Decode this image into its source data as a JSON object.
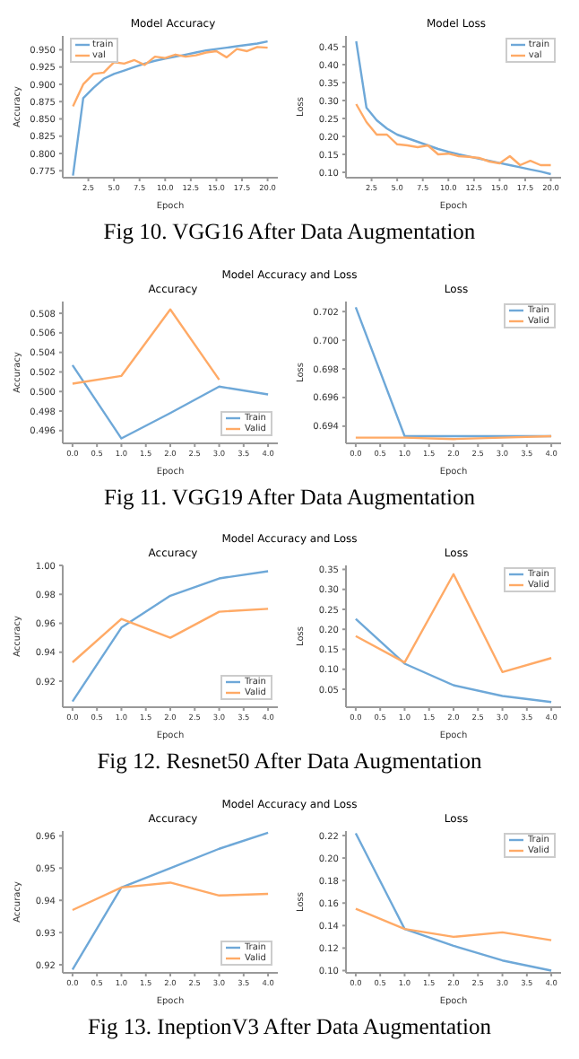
{
  "chart_data": [
    {
      "type": "line",
      "title": "Model Accuracy",
      "xlabel": "Epoch",
      "ylabel": "Accuracy",
      "legend": "top left",
      "x": [
        1,
        2,
        3,
        4,
        5,
        6,
        7,
        8,
        9,
        10,
        11,
        12,
        13,
        14,
        15,
        16,
        17,
        18,
        19,
        20
      ],
      "xlim": [
        0,
        21
      ],
      "xticks": [
        2.5,
        {
          "value": 5,
          "label": "5.0"
        },
        7.5,
        {
          "value": 10,
          "label": "10.0"
        },
        12.5,
        {
          "value": 15,
          "label": "15.0"
        },
        17.5,
        {
          "value": 20,
          "label": "20.0"
        }
      ],
      "ylim": [
        0.765,
        0.97
      ],
      "yticks": [
        0.775,
        {
          "value": 0.8,
          "label": "0.800"
        },
        0.825,
        {
          "value": 0.85,
          "label": "0.850"
        },
        0.875,
        {
          "value": 0.9,
          "label": "0.900"
        },
        0.925,
        {
          "value": 0.95,
          "label": "0.950"
        }
      ],
      "series": [
        {
          "name": "train",
          "color": "#6ea8d8",
          "values": [
            0.768,
            0.88,
            0.895,
            0.908,
            0.915,
            0.92,
            0.925,
            0.93,
            0.934,
            0.937,
            0.94,
            0.943,
            0.946,
            0.949,
            0.951,
            0.953,
            0.955,
            0.957,
            0.959,
            0.962
          ]
        },
        {
          "name": "val",
          "color": "#ffaa66",
          "values": [
            0.868,
            0.9,
            0.915,
            0.917,
            0.932,
            0.93,
            0.935,
            0.928,
            0.94,
            0.938,
            0.943,
            0.94,
            0.942,
            0.946,
            0.948,
            0.939,
            0.951,
            0.948,
            0.954,
            0.953
          ]
        }
      ]
    },
    {
      "type": "line",
      "title": "Model Loss",
      "xlabel": "Epoch",
      "ylabel": "Loss",
      "legend": "top right",
      "annotations": [
        "Fig 10. VGG16 After Data Augmentation"
      ],
      "x": [
        1,
        2,
        3,
        4,
        5,
        6,
        7,
        8,
        9,
        10,
        11,
        12,
        13,
        14,
        15,
        16,
        17,
        18,
        19,
        20
      ],
      "xlim": [
        0,
        21
      ],
      "xticks": [
        2.5,
        {
          "value": 5,
          "label": "5.0"
        },
        7.5,
        {
          "value": 10,
          "label": "10.0"
        },
        12.5,
        {
          "value": 15,
          "label": "15.0"
        },
        17.5,
        {
          "value": 20,
          "label": "20.0"
        }
      ],
      "ylim": [
        0.085,
        0.48
      ],
      "yticks": [
        {
          "value": 0.1,
          "label": "0.10"
        },
        0.15,
        {
          "value": 0.2,
          "label": "0.20"
        },
        0.25,
        {
          "value": 0.3,
          "label": "0.30"
        },
        0.35,
        {
          "value": 0.4,
          "label": "0.40"
        },
        0.45
      ],
      "series": [
        {
          "name": "train",
          "color": "#6ea8d8",
          "values": [
            0.465,
            0.28,
            0.245,
            0.222,
            0.205,
            0.195,
            0.185,
            0.175,
            0.165,
            0.157,
            0.15,
            0.144,
            0.138,
            0.132,
            0.126,
            0.12,
            0.114,
            0.108,
            0.102,
            0.095
          ]
        },
        {
          "name": "val",
          "color": "#ffaa66",
          "values": [
            0.29,
            0.24,
            0.205,
            0.205,
            0.178,
            0.175,
            0.17,
            0.175,
            0.15,
            0.152,
            0.145,
            0.143,
            0.14,
            0.13,
            0.125,
            0.145,
            0.12,
            0.132,
            0.12,
            0.12
          ]
        }
      ]
    },
    {
      "type": "line",
      "title": "Accuracy",
      "xlabel": "Epoch",
      "ylabel": "Accuracy",
      "legend": "bottom right",
      "annotations": [
        "Model Accuracy and Loss"
      ],
      "x": [
        0,
        1,
        2,
        3,
        4
      ],
      "xlim": [
        -0.2,
        4.2
      ],
      "xticks": [
        {
          "value": 0,
          "label": "0.0"
        },
        0.5,
        {
          "value": 1,
          "label": "1.0"
        },
        1.5,
        {
          "value": 2,
          "label": "2.0"
        },
        2.5,
        {
          "value": 3,
          "label": "3.0"
        },
        3.5,
        {
          "value": 4,
          "label": "4.0"
        }
      ],
      "ylim": [
        0.4947,
        0.5092
      ],
      "yticks": [
        0.496,
        0.498,
        {
          "value": 0.5,
          "label": "0.500"
        },
        0.502,
        0.504,
        0.506,
        0.508
      ],
      "series": [
        {
          "name": "Train",
          "color": "#6ea8d8",
          "values": [
            0.5027,
            0.4952,
            0.4978,
            0.5005,
            0.4997
          ]
        },
        {
          "name": "Valid",
          "color": "#ffaa66",
          "values": [
            0.5008,
            0.5016,
            0.5084,
            0.5012,
            null
          ]
        }
      ]
    },
    {
      "type": "line",
      "title": "Loss",
      "xlabel": "Epoch",
      "ylabel": "Loss",
      "legend": "top right",
      "annotations": [
        "Fig 11. VGG19 After Data Augmentation"
      ],
      "x": [
        0,
        1,
        2,
        3,
        4
      ],
      "xlim": [
        -0.2,
        4.2
      ],
      "xticks": [
        {
          "value": 0,
          "label": "0.0"
        },
        0.5,
        {
          "value": 1,
          "label": "1.0"
        },
        1.5,
        {
          "value": 2,
          "label": "2.0"
        },
        2.5,
        {
          "value": 3,
          "label": "3.0"
        },
        3.5,
        {
          "value": 4,
          "label": "4.0"
        }
      ],
      "ylim": [
        0.6928,
        0.7027
      ],
      "yticks": [
        0.694,
        0.696,
        0.698,
        {
          "value": 0.7,
          "label": "0.700"
        },
        0.702
      ],
      "series": [
        {
          "name": "Train",
          "color": "#6ea8d8",
          "values": [
            0.7023,
            0.6933,
            0.6933,
            0.6933,
            0.6933
          ]
        },
        {
          "name": "Valid",
          "color": "#ffaa66",
          "values": [
            0.6932,
            0.6932,
            0.6931,
            0.6932,
            0.6933
          ]
        }
      ]
    },
    {
      "type": "line",
      "title": "Accuracy",
      "xlabel": "Epoch",
      "ylabel": "Accuracy",
      "legend": "bottom right",
      "annotations": [
        "Model Accuracy and Loss"
      ],
      "x": [
        0,
        1,
        2,
        3,
        4
      ],
      "xlim": [
        -0.2,
        4.2
      ],
      "xticks": [
        {
          "value": 0,
          "label": "0.0"
        },
        0.5,
        {
          "value": 1,
          "label": "1.0"
        },
        1.5,
        {
          "value": 2,
          "label": "2.0"
        },
        2.5,
        {
          "value": 3,
          "label": "3.0"
        },
        3.5,
        {
          "value": 4,
          "label": "4.0"
        }
      ],
      "ylim": [
        0.902,
        1.0
      ],
      "yticks": [
        0.92,
        0.94,
        0.96,
        0.98,
        {
          "value": 1,
          "label": "1.00"
        }
      ],
      "series": [
        {
          "name": "Train",
          "color": "#6ea8d8",
          "values": [
            0.906,
            0.957,
            0.979,
            0.991,
            0.996
          ]
        },
        {
          "name": "Valid",
          "color": "#ffaa66",
          "values": [
            0.933,
            0.963,
            0.95,
            0.968,
            0.97
          ]
        }
      ]
    },
    {
      "type": "line",
      "title": "Loss",
      "xlabel": "Epoch",
      "ylabel": "Loss",
      "legend": "top right",
      "annotations": [
        "Fig 12. Resnet50 After Data Augmentation"
      ],
      "x": [
        0,
        1,
        2,
        3,
        4
      ],
      "xlim": [
        -0.2,
        4.2
      ],
      "xticks": [
        {
          "value": 0,
          "label": "0.0"
        },
        0.5,
        {
          "value": 1,
          "label": "1.0"
        },
        1.5,
        {
          "value": 2,
          "label": "2.0"
        },
        2.5,
        {
          "value": 3,
          "label": "3.0"
        },
        3.5,
        {
          "value": 4,
          "label": "4.0"
        }
      ],
      "ylim": [
        0.005,
        0.36
      ],
      "yticks": [
        0.05,
        {
          "value": 0.1,
          "label": "0.10"
        },
        0.15,
        {
          "value": 0.2,
          "label": "0.20"
        },
        0.25,
        {
          "value": 0.3,
          "label": "0.30"
        },
        0.35
      ],
      "series": [
        {
          "name": "Train",
          "color": "#6ea8d8",
          "values": [
            0.226,
            0.114,
            0.06,
            0.033,
            0.018
          ]
        },
        {
          "name": "Valid",
          "color": "#ffaa66",
          "values": [
            0.183,
            0.117,
            0.338,
            0.093,
            0.128
          ]
        }
      ]
    },
    {
      "type": "line",
      "title": "Accuracy",
      "xlabel": "Epoch",
      "ylabel": "Accuracy",
      "legend": "bottom right",
      "annotations": [
        "Model Accuracy and Loss"
      ],
      "x": [
        0,
        1,
        2,
        3,
        4
      ],
      "xlim": [
        -0.2,
        4.2
      ],
      "xticks": [
        {
          "value": 0,
          "label": "0.0"
        },
        0.5,
        {
          "value": 1,
          "label": "1.0"
        },
        1.5,
        {
          "value": 2,
          "label": "2.0"
        },
        2.5,
        {
          "value": 3,
          "label": "3.0"
        },
        3.5,
        {
          "value": 4,
          "label": "4.0"
        }
      ],
      "ylim": [
        0.9175,
        0.9615
      ],
      "yticks": [
        0.92,
        0.93,
        0.94,
        0.95,
        0.96
      ],
      "series": [
        {
          "name": "Train",
          "color": "#6ea8d8",
          "values": [
            0.9185,
            0.944,
            0.95,
            0.956,
            0.961
          ]
        },
        {
          "name": "Valid",
          "color": "#ffaa66",
          "values": [
            0.937,
            0.944,
            0.9455,
            0.9415,
            0.942
          ]
        }
      ]
    },
    {
      "type": "line",
      "title": "Loss",
      "xlabel": "Epoch",
      "ylabel": "Loss",
      "legend": "top right",
      "annotations": [
        "Fig 13. IneptionV3 After Data Augmentation"
      ],
      "x": [
        0,
        1,
        2,
        3,
        4
      ],
      "xlim": [
        -0.2,
        4.2
      ],
      "xticks": [
        {
          "value": 0,
          "label": "0.0"
        },
        0.5,
        {
          "value": 1,
          "label": "1.0"
        },
        1.5,
        {
          "value": 2,
          "label": "2.0"
        },
        2.5,
        {
          "value": 3,
          "label": "3.0"
        },
        3.5,
        {
          "value": 4,
          "label": "4.0"
        }
      ],
      "ylim": [
        0.098,
        0.224
      ],
      "yticks": [
        {
          "value": 0.1,
          "label": "0.10"
        },
        0.12,
        0.14,
        0.16,
        0.18,
        {
          "value": 0.2,
          "label": "0.20"
        },
        0.22
      ],
      "series": [
        {
          "name": "Train",
          "color": "#6ea8d8",
          "values": [
            0.222,
            0.137,
            0.122,
            0.109,
            0.1
          ]
        },
        {
          "name": "Valid",
          "color": "#ffaa66",
          "values": [
            0.155,
            0.137,
            0.13,
            0.134,
            0.127
          ]
        }
      ]
    }
  ]
}
